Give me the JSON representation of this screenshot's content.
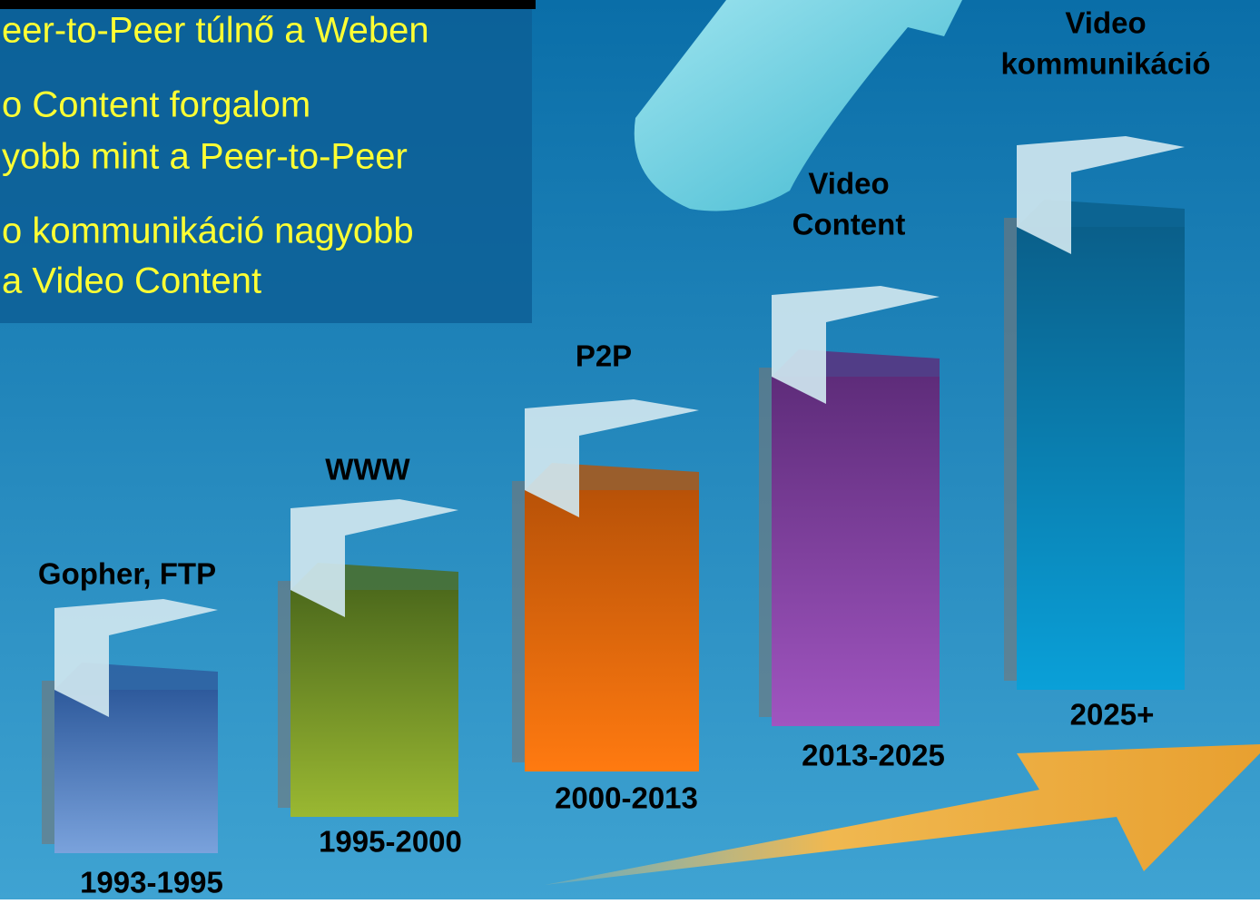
{
  "bullets": [
    {
      "lines": [
        "eer-to-Peer  túlnő a Weben"
      ]
    },
    {
      "lines": [
        "o Content forgalom",
        "yobb mint a Peer-to-Peer"
      ]
    },
    {
      "lines": [
        "o kommunikáció nagyobb",
        " a Video Content"
      ]
    }
  ],
  "stages": [
    {
      "label": [
        "Gopher, FTP"
      ],
      "period": "1993-1995"
    },
    {
      "label": [
        "WWW"
      ],
      "period": "1995-2000"
    },
    {
      "label": [
        "P2P"
      ],
      "period": "2000-2013"
    },
    {
      "label": [
        "Video",
        "Content"
      ],
      "period": "2013-2025"
    },
    {
      "label": [
        "Video",
        "kommunikáció"
      ],
      "period": "2025+"
    }
  ]
}
